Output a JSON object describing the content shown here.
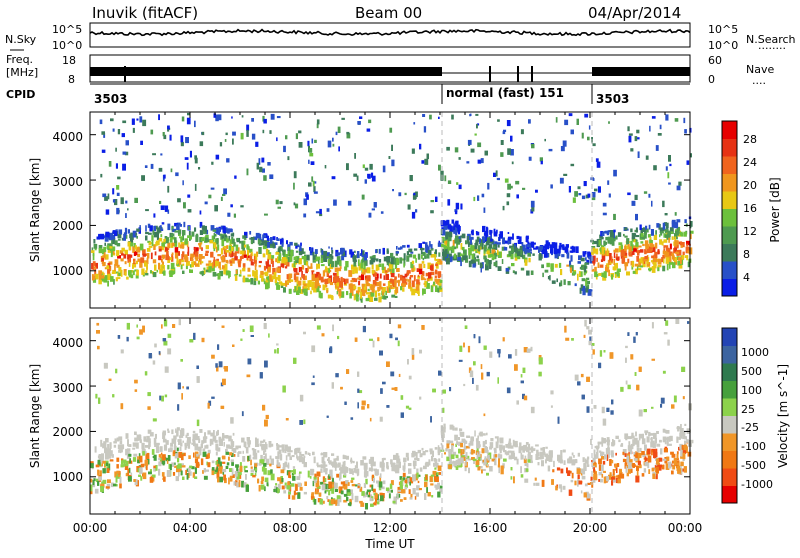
{
  "header": {
    "station": "Inuvik (fitACF)",
    "beam": "Beam 00",
    "date": "04/Apr/2014"
  },
  "top_panels": {
    "nsky_label": "N.Sky",
    "nsearch_label": "N.Search",
    "nsearch_marker": "........",
    "freq_label_1": "Freq.",
    "freq_label_2": "[MHz]",
    "nave_label": "Nave",
    "nave_marker": "....",
    "cpid_label": "CPID",
    "noise_left_ticks": [
      "10^5",
      "10^0"
    ],
    "noise_right_ticks": [
      "10^5",
      "10^0"
    ],
    "freq_left_ticks": [
      "18",
      "8"
    ],
    "nave_right_ticks": [
      "60",
      "0"
    ],
    "cpid_segments": [
      {
        "label": "3503",
        "start_hour": 0,
        "end_hour": 14
      },
      {
        "label": "normal (fast) 151",
        "start_hour": 14,
        "end_hour": 20
      },
      {
        "label": "3503",
        "start_hour": 20,
        "end_hour": 24
      }
    ]
  },
  "colors": {
    "power_scale": [
      "#0a1ee6",
      "#2850c8",
      "#3c7a5a",
      "#4e9a50",
      "#6cc03c",
      "#e8c814",
      "#f0961e",
      "#f0641e",
      "#e63214",
      "#e60000"
    ],
    "velocity_scale": [
      "#2344b4",
      "#3c64a0",
      "#2f7a4f",
      "#46a03c",
      "#8cd24b",
      "#c8c8c0",
      "#f09628",
      "#f07814",
      "#f04b14",
      "#e60000"
    ]
  },
  "chart_data": [
    {
      "type": "heatmap",
      "title": "Power",
      "xlabel": "Time UT",
      "ylabel": "Slant Range [km]",
      "x_ticks": [
        "00:00",
        "04:00",
        "08:00",
        "12:00",
        "16:00",
        "20:00",
        "00:00"
      ],
      "xlim_hours": [
        0,
        24
      ],
      "ylim": [
        180,
        4500
      ],
      "y_ticks": [
        1000,
        2000,
        3000,
        4000
      ],
      "colorbar_label": "Power [dB]",
      "colorbar_ticks": [
        "4",
        "8",
        "12",
        "16",
        "20",
        "24",
        "28"
      ],
      "colorbar_range": [
        0,
        30
      ],
      "dashed_lines_hours": [
        14,
        20
      ]
    },
    {
      "type": "heatmap",
      "title": "Velocity",
      "xlabel": "Time UT",
      "ylabel": "Slant Range [km]",
      "x_ticks": [
        "00:00",
        "04:00",
        "08:00",
        "12:00",
        "16:00",
        "20:00",
        "00:00"
      ],
      "xlim_hours": [
        0,
        24
      ],
      "ylim": [
        180,
        4500
      ],
      "y_ticks": [
        1000,
        2000,
        3000,
        4000
      ],
      "colorbar_label": "Velocity [m s^-1]",
      "colorbar_ticks": [
        "1000",
        "500",
        "100",
        "25",
        "-25",
        "-100",
        "-500",
        "-1000"
      ],
      "dashed_lines_hours": [
        14,
        20
      ]
    }
  ]
}
